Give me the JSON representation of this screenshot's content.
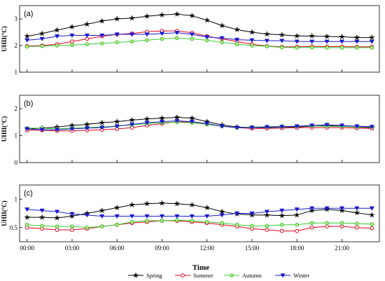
{
  "chart_data": {
    "type": "line",
    "xlabel": "Time",
    "x_ticks": [
      "00:00",
      "03:00",
      "06:00",
      "09:00",
      "12:00",
      "15:00",
      "18:00",
      "21:00"
    ],
    "x": [
      0,
      1,
      2,
      3,
      4,
      5,
      6,
      7,
      8,
      9,
      10,
      11,
      12,
      13,
      14,
      15,
      16,
      17,
      18,
      19,
      20,
      21,
      22,
      23
    ],
    "legend": {
      "placement": "bottom"
    },
    "series_styles": [
      {
        "name": "Spring",
        "color": "#000000",
        "marker": "star"
      },
      {
        "name": "Summer",
        "color": "#e0001b",
        "marker": "circle"
      },
      {
        "name": "Autumn",
        "color": "#33cc33",
        "marker": "diamond-filled"
      },
      {
        "name": "Winter",
        "color": "#1a1acc",
        "marker": "triangle-down"
      }
    ],
    "panels": [
      {
        "label": "(a)",
        "ylabel": "UHII(°C)",
        "ylim": [
          1,
          3.5
        ],
        "yticks": [
          1,
          2,
          3
        ],
        "series": [
          {
            "name": "Spring",
            "values": [
              2.35,
              2.45,
              2.58,
              2.7,
              2.8,
              2.92,
              3.0,
              3.03,
              3.1,
              3.15,
              3.18,
              3.12,
              2.95,
              2.75,
              2.6,
              2.5,
              2.43,
              2.4,
              2.36,
              2.36,
              2.34,
              2.33,
              2.3,
              2.3
            ]
          },
          {
            "name": "Summer",
            "values": [
              1.98,
              2.0,
              2.05,
              2.15,
              2.25,
              2.35,
              2.42,
              2.45,
              2.52,
              2.55,
              2.55,
              2.48,
              2.35,
              2.25,
              2.15,
              2.05,
              1.98,
              1.95,
              1.95,
              1.97,
              1.96,
              1.96,
              1.95,
              1.95
            ]
          },
          {
            "name": "Autumn",
            "values": [
              1.96,
              1.98,
              2.0,
              2.02,
              2.05,
              2.08,
              2.12,
              2.15,
              2.2,
              2.25,
              2.28,
              2.25,
              2.2,
              2.12,
              2.05,
              2.0,
              1.97,
              1.93,
              1.92,
              1.93,
              1.92,
              1.92,
              1.92,
              1.92
            ]
          },
          {
            "name": "Winter",
            "values": [
              2.2,
              2.25,
              2.35,
              2.38,
              2.38,
              2.38,
              2.42,
              2.42,
              2.42,
              2.45,
              2.48,
              2.42,
              2.32,
              2.28,
              2.22,
              2.2,
              2.18,
              2.18,
              2.15,
              2.15,
              2.15,
              2.15,
              2.15,
              2.15
            ]
          }
        ]
      },
      {
        "label": "(b)",
        "ylabel": "UHII(°C)",
        "ylim": [
          0,
          2.5
        ],
        "yticks": [
          0,
          1,
          2
        ],
        "series": [
          {
            "name": "Spring",
            "values": [
              1.25,
              1.28,
              1.32,
              1.38,
              1.42,
              1.48,
              1.52,
              1.58,
              1.62,
              1.65,
              1.68,
              1.65,
              1.52,
              1.4,
              1.32,
              1.3,
              1.3,
              1.32,
              1.32,
              1.35,
              1.38,
              1.35,
              1.32,
              1.3
            ]
          },
          {
            "name": "Summer",
            "values": [
              1.2,
              1.2,
              1.18,
              1.18,
              1.2,
              1.22,
              1.25,
              1.3,
              1.38,
              1.45,
              1.52,
              1.5,
              1.42,
              1.35,
              1.3,
              1.27,
              1.27,
              1.28,
              1.3,
              1.3,
              1.3,
              1.3,
              1.28,
              1.27
            ]
          },
          {
            "name": "Autumn",
            "values": [
              1.28,
              1.28,
              1.25,
              1.28,
              1.3,
              1.32,
              1.36,
              1.4,
              1.45,
              1.48,
              1.5,
              1.48,
              1.42,
              1.35,
              1.3,
              1.32,
              1.33,
              1.34,
              1.35,
              1.36,
              1.35,
              1.34,
              1.33,
              1.33
            ]
          },
          {
            "name": "Winter",
            "values": [
              1.25,
              1.22,
              1.22,
              1.25,
              1.28,
              1.3,
              1.35,
              1.42,
              1.48,
              1.52,
              1.55,
              1.52,
              1.45,
              1.35,
              1.3,
              1.3,
              1.32,
              1.33,
              1.35,
              1.38,
              1.4,
              1.38,
              1.35,
              1.33
            ]
          }
        ]
      },
      {
        "label": "(c)",
        "ylabel": "UHII(°C)",
        "ylim": [
          0.25,
          1.25
        ],
        "yticks": [
          0.5,
          1
        ],
        "series": [
          {
            "name": "Spring",
            "values": [
              0.68,
              0.68,
              0.67,
              0.7,
              0.75,
              0.8,
              0.85,
              0.9,
              0.92,
              0.93,
              0.92,
              0.9,
              0.85,
              0.78,
              0.74,
              0.72,
              0.72,
              0.71,
              0.72,
              0.8,
              0.82,
              0.8,
              0.76,
              0.72
            ]
          },
          {
            "name": "Summer",
            "values": [
              0.5,
              0.48,
              0.46,
              0.46,
              0.48,
              0.52,
              0.55,
              0.58,
              0.6,
              0.62,
              0.62,
              0.6,
              0.58,
              0.55,
              0.52,
              0.48,
              0.46,
              0.44,
              0.44,
              0.5,
              0.52,
              0.52,
              0.5,
              0.49
            ]
          },
          {
            "name": "Autumn",
            "values": [
              0.55,
              0.53,
              0.52,
              0.52,
              0.5,
              0.52,
              0.55,
              0.6,
              0.62,
              0.62,
              0.63,
              0.62,
              0.6,
              0.58,
              0.55,
              0.53,
              0.53,
              0.55,
              0.55,
              0.58,
              0.58,
              0.58,
              0.57,
              0.56
            ]
          },
          {
            "name": "Winter",
            "values": [
              0.82,
              0.8,
              0.78,
              0.74,
              0.72,
              0.7,
              0.7,
              0.7,
              0.7,
              0.7,
              0.7,
              0.7,
              0.7,
              0.72,
              0.75,
              0.75,
              0.78,
              0.8,
              0.82,
              0.84,
              0.84,
              0.84,
              0.84,
              0.84
            ]
          }
        ]
      }
    ]
  }
}
